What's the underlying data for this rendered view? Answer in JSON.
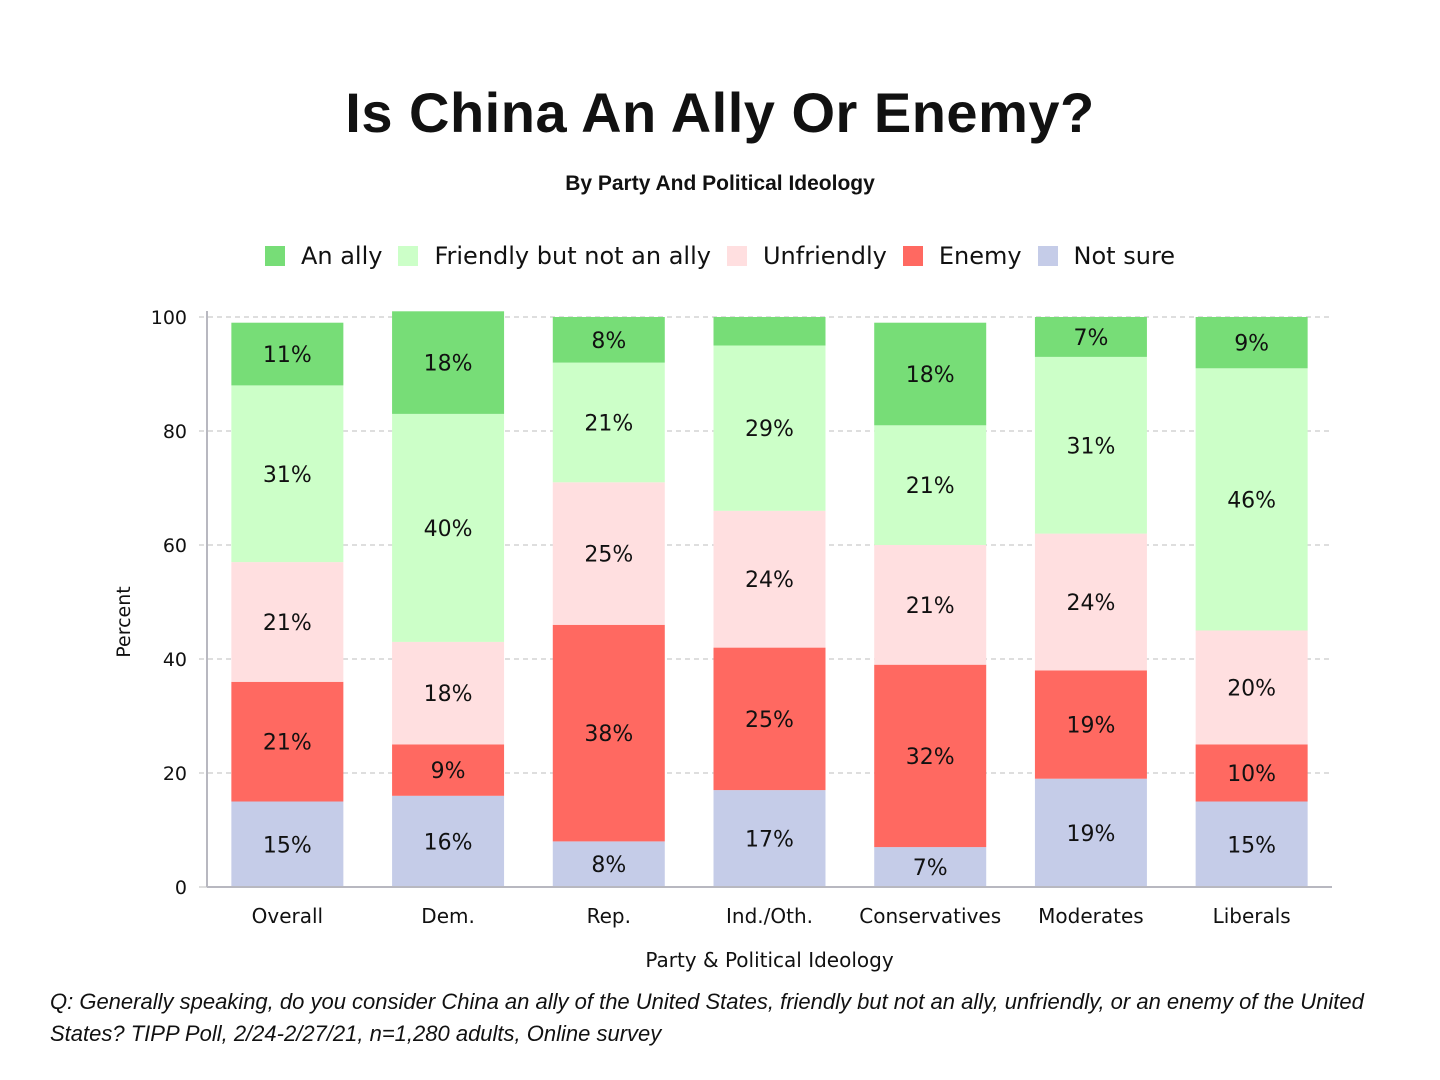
{
  "chart_data": {
    "type": "bar",
    "stacked": true,
    "title": "Is China An Ally Or Enemy?",
    "subtitle": "By Party And Political Ideology",
    "xlabel": "Party & Political Ideology",
    "ylabel": "Percent",
    "ylim": [
      0,
      100
    ],
    "yticks": [
      0,
      20,
      40,
      60,
      80,
      100
    ],
    "grid": true,
    "legend_position": "top",
    "categories": [
      "Overall",
      "Dem.",
      "Rep.",
      "Ind./Oth.",
      "Conservatives",
      "Moderates",
      "Liberals"
    ],
    "series": [
      {
        "name": "Not sure",
        "color": "#c5cce8",
        "values": [
          15,
          16,
          8,
          17,
          7,
          19,
          15
        ],
        "labels": [
          "15%",
          "16%",
          "8%",
          "17%",
          "7%",
          "19%",
          "15%"
        ]
      },
      {
        "name": "Enemy",
        "color": "#ff6961",
        "values": [
          21,
          9,
          38,
          25,
          32,
          19,
          10
        ],
        "labels": [
          "21%",
          "9%",
          "38%",
          "25%",
          "32%",
          "19%",
          "10%"
        ]
      },
      {
        "name": "Unfriendly",
        "color": "#ffdfe0",
        "values": [
          21,
          18,
          25,
          24,
          21,
          24,
          20
        ],
        "labels": [
          "21%",
          "18%",
          "25%",
          "24%",
          "21%",
          "24%",
          "20%"
        ]
      },
      {
        "name": "Friendly but not an ally",
        "color": "#ccffc8",
        "values": [
          31,
          40,
          21,
          29,
          21,
          31,
          46
        ],
        "labels": [
          "31%",
          "40%",
          "21%",
          "29%",
          "21%",
          "31%",
          "46%"
        ]
      },
      {
        "name": "An ally",
        "color": "#77dd77",
        "values": [
          11,
          18,
          8,
          5,
          18,
          7,
          9
        ],
        "labels": [
          "11%",
          "18%",
          "8%",
          "",
          "18%",
          "7%",
          "9%"
        ]
      }
    ],
    "legend_order": [
      "An ally",
      "Friendly but not an ally",
      "Unfriendly",
      "Enemy",
      "Not sure"
    ]
  },
  "footnote": "Q:  Generally speaking, do you consider China an ally of the United States, friendly but not an ally, unfriendly, or an enemy of the United States?  TIPP Poll, 2/24-2/27/21, n=1,280 adults, Online survey"
}
